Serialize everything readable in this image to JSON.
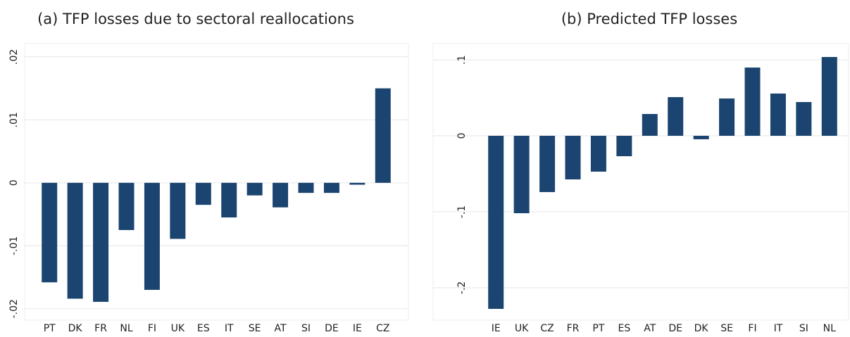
{
  "chart_data": [
    {
      "type": "bar",
      "title": "(a) TFP losses due to sectoral reallocations",
      "categories": [
        "PT",
        "DK",
        "FR",
        "NL",
        "FI",
        "UK",
        "ES",
        "IT",
        "SE",
        "AT",
        "SI",
        "DE",
        "IE",
        "CZ"
      ],
      "values": [
        -0.0158,
        -0.0184,
        -0.0189,
        -0.0075,
        -0.017,
        -0.0089,
        -0.0035,
        -0.0055,
        -0.002,
        -0.0039,
        -0.0016,
        -0.0016,
        -0.0003,
        0.015
      ],
      "color": "#1b4570",
      "ylim": [
        -0.0218,
        0.0221
      ],
      "yticks": [
        {
          "value": -0.02,
          "label": "-.02"
        },
        {
          "value": -0.01,
          "label": "-.01"
        },
        0,
        {
          "value": 0.01,
          "label": ".01"
        },
        {
          "value": 0.02,
          "label": ".02"
        }
      ],
      "grid": true
    },
    {
      "type": "bar",
      "title": "(b) Predicted TFP losses",
      "categories": [
        "IE",
        "UK",
        "CZ",
        "FR",
        "PT",
        "ES",
        "AT",
        "DE",
        "DK",
        "SE",
        "FI",
        "IT",
        "SI",
        "NL"
      ],
      "values": [
        -0.2278,
        -0.1019,
        -0.0741,
        -0.0574,
        -0.0472,
        -0.0269,
        0.0287,
        0.0509,
        -0.0046,
        0.0491,
        0.0898,
        0.0556,
        0.0444,
        0.1037
      ],
      "color": "#1b4570",
      "ylim": [
        -0.2426,
        0.1213
      ],
      "yticks": [
        {
          "value": -0.2,
          "label": "-.2"
        },
        {
          "value": -0.1,
          "label": "-.1"
        },
        0,
        {
          "value": 0.1,
          "label": ".1"
        }
      ],
      "grid": true
    }
  ]
}
